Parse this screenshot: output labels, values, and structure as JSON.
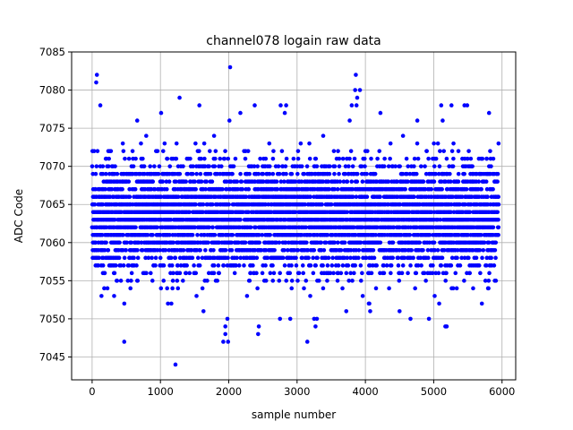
{
  "chart_data": {
    "type": "scatter",
    "title": "channel078 logain raw data",
    "xlabel": "sample number",
    "ylabel": "ADC Code",
    "xlim": [
      -300,
      6200
    ],
    "ylim": [
      7042,
      7085
    ],
    "xticks": [
      0,
      1000,
      2000,
      3000,
      4000,
      5000,
      6000
    ],
    "yticks": [
      7045,
      7050,
      7055,
      7060,
      7065,
      7070,
      7075,
      7080,
      7085
    ],
    "xtick_labels": [
      "0",
      "1000",
      "2000",
      "3000",
      "4000",
      "5000",
      "6000"
    ],
    "ytick_labels": [
      "7045",
      "7050",
      "7055",
      "7060",
      "7065",
      "7070",
      "7075",
      "7080",
      "7085"
    ],
    "grid": true,
    "marker_color": "#0000ff",
    "series": [
      {
        "sample_count": 5950,
        "band": {
          "x_start": 0,
          "x_end": 5950,
          "core_min": 7057,
          "core_max": 7070,
          "mean": 7063.5
        },
        "outliers": [
          [
            60,
            7081
          ],
          [
            70,
            7082
          ],
          [
            1220,
            7044
          ],
          [
            470,
            7047
          ],
          [
            2020,
            7083
          ],
          [
            3150,
            7047
          ],
          [
            1920,
            7047
          ],
          [
            1990,
            7047
          ],
          [
            1950,
            7048
          ],
          [
            2430,
            7048
          ],
          [
            2440,
            7049
          ],
          [
            5170,
            7049
          ],
          [
            5190,
            7049
          ],
          [
            1280,
            7079
          ],
          [
            3860,
            7082
          ],
          [
            3850,
            7080
          ],
          [
            3920,
            7080
          ],
          [
            3880,
            7079
          ],
          [
            3800,
            7078
          ],
          [
            3870,
            7078
          ],
          [
            120,
            7078
          ],
          [
            2380,
            7078
          ],
          [
            2760,
            7078
          ],
          [
            2840,
            7078
          ],
          [
            5110,
            7078
          ],
          [
            5260,
            7078
          ],
          [
            5450,
            7078
          ],
          [
            5490,
            7078
          ],
          [
            1570,
            7078
          ],
          [
            1010,
            7077
          ],
          [
            2170,
            7077
          ],
          [
            2820,
            7077
          ],
          [
            4220,
            7077
          ],
          [
            5810,
            7077
          ],
          [
            660,
            7076
          ],
          [
            2010,
            7076
          ],
          [
            3770,
            7076
          ],
          [
            4760,
            7076
          ],
          [
            2750,
            7050
          ],
          [
            2900,
            7050
          ],
          [
            3250,
            7050
          ],
          [
            3290,
            7050
          ],
          [
            4930,
            7050
          ],
          [
            4660,
            7050
          ],
          [
            3270,
            7049
          ],
          [
            1630,
            7051
          ],
          [
            4050,
            7052
          ],
          [
            4500,
            7051
          ],
          [
            3720,
            7051
          ],
          [
            5080,
            7052
          ],
          [
            1110,
            7052
          ],
          [
            1160,
            7052
          ],
          [
            1950,
            7049
          ],
          [
            1980,
            7050
          ],
          [
            4070,
            7051
          ]
        ]
      }
    ]
  }
}
